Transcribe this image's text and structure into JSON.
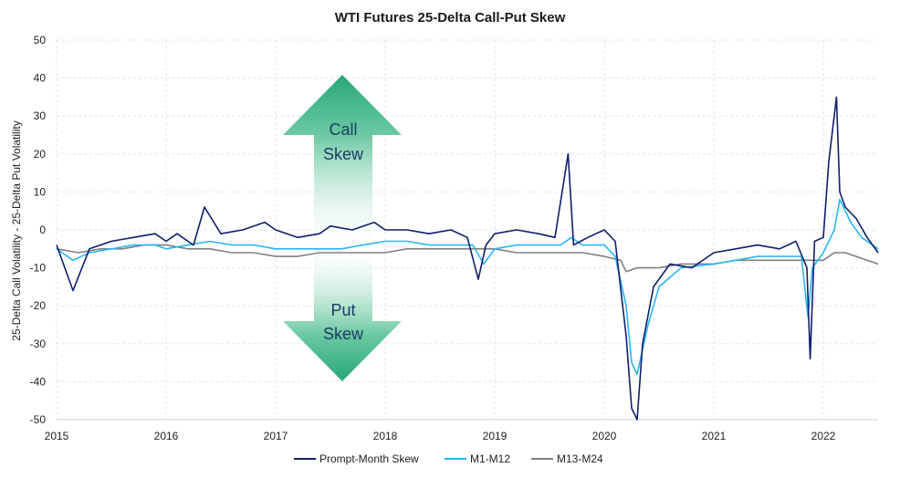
{
  "chart_data": {
    "type": "line",
    "title": "WTI Futures 25-Delta Call-Put Skew",
    "xlabel": "",
    "ylabel": "25-Delta Call Volatility - 25-Delta Put Volatility",
    "xlim": [
      2015.0,
      2022.5
    ],
    "ylim": [
      -50,
      50
    ],
    "yticks": [
      50,
      40,
      30,
      20,
      10,
      0,
      -10,
      -20,
      -30,
      -40,
      -50
    ],
    "xticks": [
      "2015",
      "2016",
      "2017",
      "2018",
      "2019",
      "2020",
      "2021",
      "2022"
    ],
    "grid": true,
    "legend_position": "bottom",
    "annotations": {
      "call_skew": [
        "Call",
        "Skew"
      ],
      "put_skew": [
        "Put",
        "Skew"
      ]
    },
    "series": [
      {
        "name": "Prompt-Month Skew",
        "color": "#0f1f6b",
        "x": [
          2015.0,
          2015.1,
          2015.15,
          2015.3,
          2015.5,
          2015.7,
          2015.9,
          2016.0,
          2016.1,
          2016.25,
          2016.35,
          2016.5,
          2016.7,
          2016.9,
          2017.0,
          2017.2,
          2017.4,
          2017.5,
          2017.7,
          2017.9,
          2018.0,
          2018.2,
          2018.4,
          2018.6,
          2018.75,
          2018.85,
          2018.92,
          2019.0,
          2019.2,
          2019.4,
          2019.55,
          2019.67,
          2019.72,
          2019.85,
          2020.0,
          2020.1,
          2020.2,
          2020.25,
          2020.3,
          2020.35,
          2020.45,
          2020.6,
          2020.8,
          2021.0,
          2021.2,
          2021.4,
          2021.6,
          2021.75,
          2021.85,
          2021.88,
          2021.92,
          2022.0,
          2022.05,
          2022.12,
          2022.15,
          2022.2,
          2022.3,
          2022.4,
          2022.5
        ],
        "values": [
          -4,
          -12,
          -16,
          -5,
          -3,
          -2,
          -1,
          -3,
          -1,
          -4,
          6,
          -1,
          0,
          2,
          0,
          -2,
          -1,
          1,
          0,
          2,
          0,
          0,
          -1,
          0,
          -2,
          -13,
          -4,
          -1,
          0,
          -1,
          -2,
          20,
          -4,
          -2,
          0,
          -3,
          -28,
          -47,
          -50,
          -30,
          -15,
          -9,
          -10,
          -6,
          -5,
          -4,
          -5,
          -3,
          -10,
          -34,
          -3,
          -2,
          18,
          35,
          10,
          6,
          3,
          -2,
          -6
        ]
      },
      {
        "name": "M1-M12",
        "color": "#29b6f6",
        "x": [
          2015.0,
          2015.1,
          2015.15,
          2015.3,
          2015.5,
          2015.7,
          2015.9,
          2016.0,
          2016.2,
          2016.4,
          2016.6,
          2016.8,
          2017.0,
          2017.2,
          2017.4,
          2017.6,
          2017.8,
          2018.0,
          2018.2,
          2018.4,
          2018.6,
          2018.8,
          2018.9,
          2019.0,
          2019.2,
          2019.4,
          2019.6,
          2019.7,
          2019.8,
          2020.0,
          2020.1,
          2020.2,
          2020.25,
          2020.3,
          2020.4,
          2020.5,
          2020.7,
          2021.0,
          2021.2,
          2021.4,
          2021.6,
          2021.8,
          2021.86,
          2021.9,
          2022.0,
          2022.1,
          2022.15,
          2022.25,
          2022.35,
          2022.5
        ],
        "values": [
          -5,
          -7,
          -8,
          -6,
          -5,
          -4,
          -4,
          -5,
          -4,
          -3,
          -4,
          -4,
          -5,
          -5,
          -5,
          -5,
          -4,
          -3,
          -3,
          -4,
          -4,
          -4,
          -9,
          -5,
          -4,
          -4,
          -4,
          -2,
          -4,
          -4,
          -7,
          -20,
          -35,
          -38,
          -25,
          -15,
          -10,
          -9,
          -8,
          -7,
          -7,
          -7,
          -23,
          -10,
          -6,
          0,
          8,
          2,
          -2,
          -5
        ]
      },
      {
        "name": "M13-M24",
        "color": "#808080",
        "x": [
          2015.0,
          2015.2,
          2015.4,
          2015.6,
          2015.8,
          2016.0,
          2016.2,
          2016.4,
          2016.6,
          2016.8,
          2017.0,
          2017.2,
          2017.4,
          2017.6,
          2017.8,
          2018.0,
          2018.2,
          2018.4,
          2018.6,
          2018.8,
          2019.0,
          2019.2,
          2019.4,
          2019.6,
          2019.8,
          2020.0,
          2020.15,
          2020.2,
          2020.3,
          2020.5,
          2020.7,
          2021.0,
          2021.2,
          2021.4,
          2021.6,
          2021.8,
          2022.0,
          2022.1,
          2022.2,
          2022.3,
          2022.5
        ],
        "values": [
          -5,
          -6,
          -5,
          -5,
          -4,
          -4,
          -5,
          -5,
          -6,
          -6,
          -7,
          -7,
          -6,
          -6,
          -6,
          -6,
          -5,
          -5,
          -5,
          -5,
          -5,
          -6,
          -6,
          -6,
          -6,
          -7,
          -8,
          -11,
          -10,
          -10,
          -9,
          -9,
          -8,
          -8,
          -8,
          -8,
          -8,
          -6,
          -6,
          -7,
          -9
        ]
      }
    ]
  }
}
